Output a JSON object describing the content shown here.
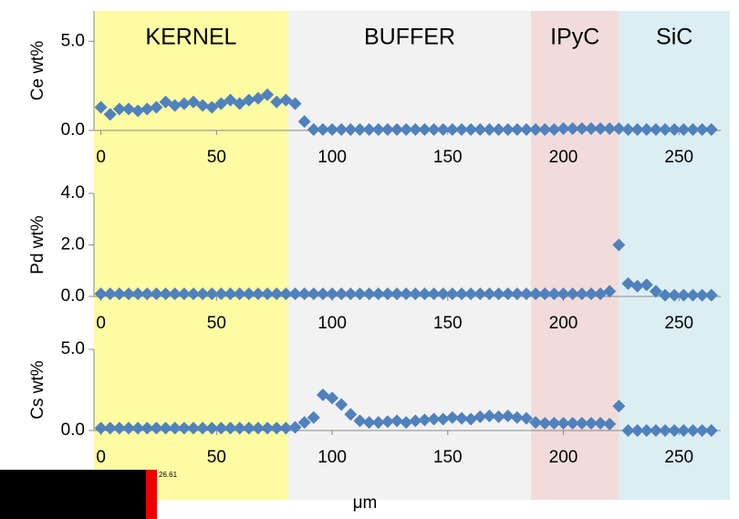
{
  "x_label": "μm",
  "xlim": [
    -3,
    272
  ],
  "regions": [
    {
      "label": "KERNEL",
      "start": -3,
      "end": 81,
      "color": "#fdfca3"
    },
    {
      "label": "BUFFER",
      "start": 81,
      "end": 186,
      "color": "#f2f2f2"
    },
    {
      "label": "IPyC",
      "start": 186,
      "end": 224,
      "color": "#f2dcdb"
    },
    {
      "label": "SiC",
      "start": 224,
      "end": 272,
      "color": "#dbeef4"
    }
  ],
  "inset": {
    "label": "26.61"
  },
  "chart_data": [
    {
      "type": "scatter",
      "y_label": "Ce wt%",
      "color": "#4f81bd",
      "x": [
        0,
        4,
        8,
        12,
        16,
        20,
        24,
        28,
        32,
        36,
        40,
        44,
        48,
        52,
        56,
        60,
        64,
        68,
        72,
        76,
        80,
        84,
        88,
        92,
        96,
        100,
        104,
        108,
        112,
        116,
        120,
        124,
        128,
        132,
        136,
        140,
        144,
        148,
        152,
        156,
        160,
        164,
        168,
        172,
        176,
        180,
        184,
        188,
        192,
        196,
        200,
        204,
        208,
        212,
        216,
        220,
        224,
        228,
        232,
        236,
        240,
        244,
        248,
        252,
        256,
        260,
        264
      ],
      "values": [
        1.3,
        0.9,
        1.2,
        1.2,
        1.1,
        1.2,
        1.3,
        1.6,
        1.4,
        1.5,
        1.6,
        1.4,
        1.3,
        1.5,
        1.7,
        1.5,
        1.7,
        1.8,
        2.0,
        1.6,
        1.7,
        1.5,
        0.5,
        0.05,
        0.05,
        0.05,
        0.05,
        0.05,
        0.05,
        0.05,
        0.05,
        0.05,
        0.05,
        0.05,
        0.05,
        0.05,
        0.05,
        0.05,
        0.05,
        0.05,
        0.05,
        0.05,
        0.05,
        0.05,
        0.05,
        0.05,
        0.05,
        0.05,
        0.05,
        0.05,
        0.1,
        0.1,
        0.1,
        0.1,
        0.1,
        0.1,
        0.1,
        0.05,
        0.05,
        0.05,
        0.05,
        0.05,
        0.05,
        0.05,
        0.05,
        0.05,
        0.05
      ],
      "ylim": [
        0,
        6.7
      ],
      "yticks": [
        {
          "value": 0,
          "label": "0.0"
        },
        {
          "value": 5,
          "label": "5.0"
        }
      ],
      "xticks": [
        0,
        50,
        100,
        150,
        200,
        250
      ]
    },
    {
      "type": "scatter",
      "y_label": "Pd wt%",
      "color": "#4f81bd",
      "x": [
        0,
        4,
        8,
        12,
        16,
        20,
        24,
        28,
        32,
        36,
        40,
        44,
        48,
        52,
        56,
        60,
        64,
        68,
        72,
        76,
        80,
        84,
        88,
        92,
        96,
        100,
        104,
        108,
        112,
        116,
        120,
        124,
        128,
        132,
        136,
        140,
        144,
        148,
        152,
        156,
        160,
        164,
        168,
        172,
        176,
        180,
        184,
        188,
        192,
        196,
        200,
        204,
        208,
        212,
        216,
        220,
        224,
        228,
        232,
        236,
        240,
        244,
        248,
        252,
        256,
        260,
        264
      ],
      "values": [
        0.1,
        0.1,
        0.1,
        0.1,
        0.1,
        0.1,
        0.1,
        0.1,
        0.1,
        0.1,
        0.1,
        0.1,
        0.1,
        0.1,
        0.1,
        0.1,
        0.1,
        0.1,
        0.1,
        0.1,
        0.1,
        0.1,
        0.1,
        0.1,
        0.1,
        0.1,
        0.1,
        0.1,
        0.1,
        0.1,
        0.1,
        0.1,
        0.1,
        0.1,
        0.1,
        0.1,
        0.1,
        0.1,
        0.1,
        0.1,
        0.1,
        0.1,
        0.1,
        0.1,
        0.1,
        0.1,
        0.1,
        0.1,
        0.1,
        0.1,
        0.1,
        0.1,
        0.1,
        0.1,
        0.1,
        0.2,
        2.0,
        0.5,
        0.4,
        0.45,
        0.2,
        0.05,
        0.05,
        0.05,
        0.05,
        0.05,
        0.05
      ],
      "ylim": [
        0,
        4
      ],
      "yticks": [
        {
          "value": 0,
          "label": "0.0"
        },
        {
          "value": 2,
          "label": "2.0"
        },
        {
          "value": 4,
          "label": "4.0"
        }
      ],
      "xticks": [
        0,
        50,
        100,
        150,
        200,
        250
      ]
    },
    {
      "type": "scatter",
      "y_label": "Cs wt%",
      "color": "#4f81bd",
      "x": [
        0,
        4,
        8,
        12,
        16,
        20,
        24,
        28,
        32,
        36,
        40,
        44,
        48,
        52,
        56,
        60,
        64,
        68,
        72,
        76,
        80,
        84,
        88,
        92,
        96,
        100,
        104,
        108,
        112,
        116,
        120,
        124,
        128,
        132,
        136,
        140,
        144,
        148,
        152,
        156,
        160,
        164,
        168,
        172,
        176,
        180,
        184,
        188,
        192,
        196,
        200,
        204,
        208,
        212,
        216,
        220,
        224,
        228,
        232,
        236,
        240,
        244,
        248,
        252,
        256,
        260,
        264
      ],
      "values": [
        0.15,
        0.15,
        0.15,
        0.15,
        0.15,
        0.15,
        0.15,
        0.15,
        0.15,
        0.15,
        0.15,
        0.15,
        0.15,
        0.15,
        0.15,
        0.15,
        0.15,
        0.15,
        0.15,
        0.15,
        0.15,
        0.2,
        0.5,
        0.8,
        2.2,
        2.0,
        1.6,
        1.0,
        0.6,
        0.5,
        0.5,
        0.55,
        0.6,
        0.5,
        0.6,
        0.65,
        0.7,
        0.7,
        0.8,
        0.75,
        0.7,
        0.85,
        0.9,
        0.85,
        0.9,
        0.8,
        0.75,
        0.5,
        0.45,
        0.45,
        0.45,
        0.45,
        0.45,
        0.45,
        0.45,
        0.4,
        1.5,
        0.0,
        0.0,
        0.0,
        0.0,
        0.0,
        0.0,
        0.0,
        0.0,
        0.0,
        0.0
      ],
      "ylim": [
        0,
        5
      ],
      "yticks": [
        {
          "value": 0,
          "label": "0.0"
        },
        {
          "value": 5,
          "label": "5.0"
        }
      ],
      "xticks": [
        0,
        50,
        100,
        150,
        200,
        250
      ]
    }
  ]
}
